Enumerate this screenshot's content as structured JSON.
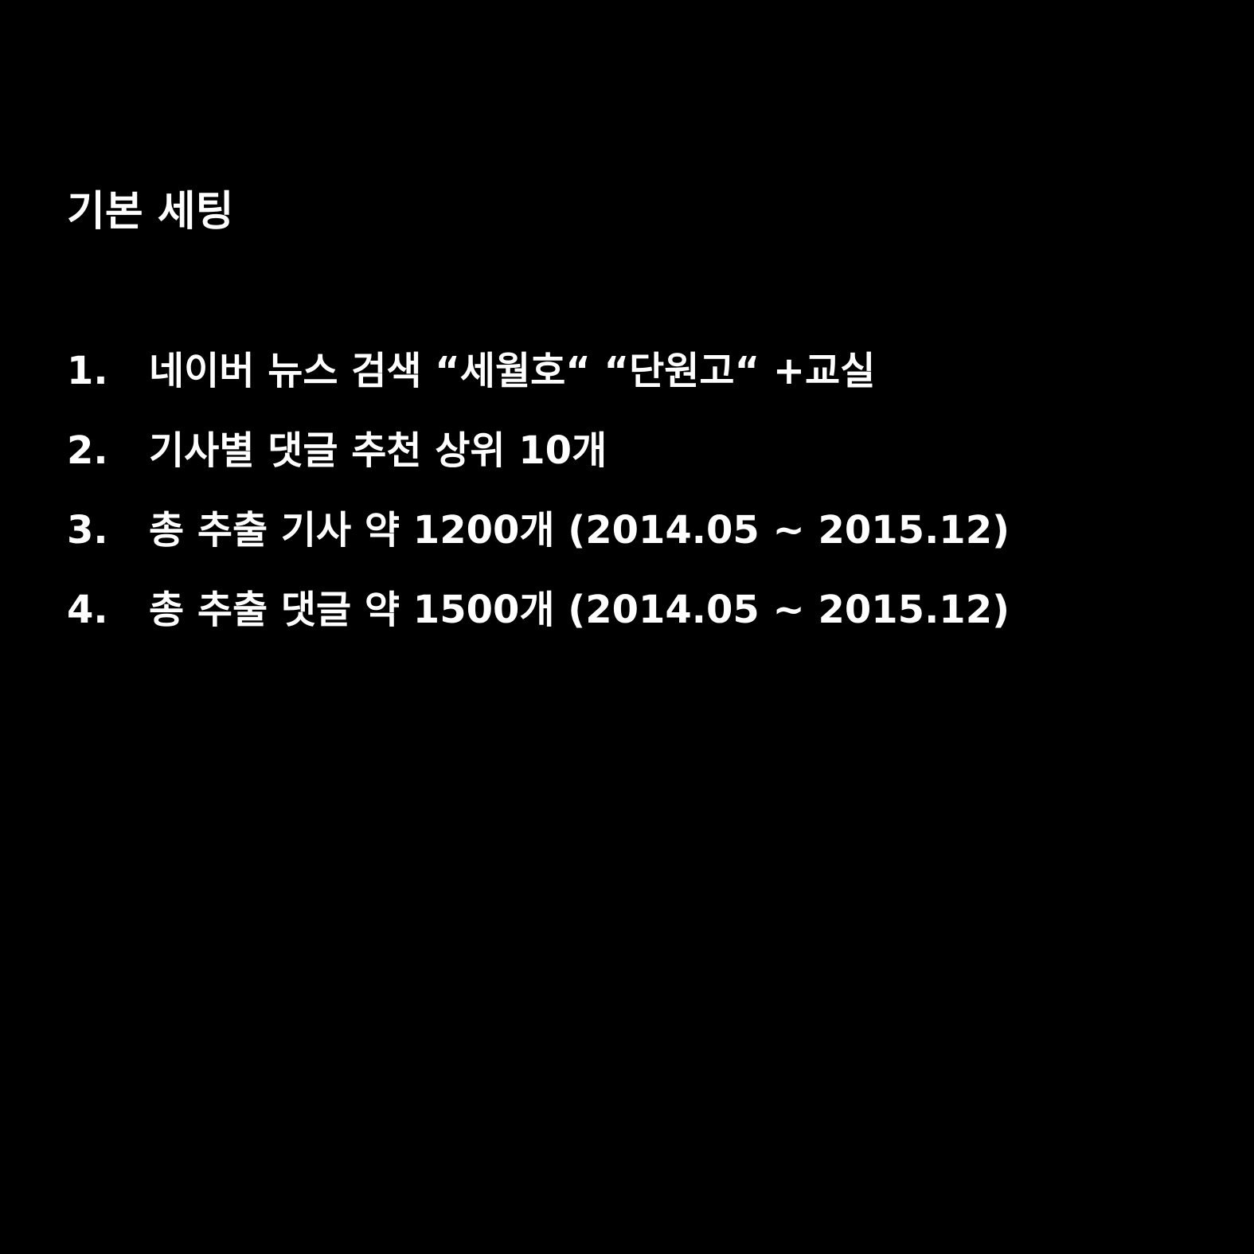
{
  "slide": {
    "title": "기본 세팅",
    "items": [
      {
        "number": "1.",
        "text": "네이버 뉴스 검색 “세월호“ “단원고“ +교실"
      },
      {
        "number": "2.",
        "text": "기사별 댓글 추천 상위 10개"
      },
      {
        "number": "3.",
        "text": "총 추출 기사 약 1200개 (2014.05 ~ 2015.12)"
      },
      {
        "number": "4.",
        "text": "총 추출 댓글 약 1500개 (2014.05 ~ 2015.12)"
      }
    ]
  },
  "colors": {
    "background": "#000000",
    "text": "#ffffff"
  }
}
